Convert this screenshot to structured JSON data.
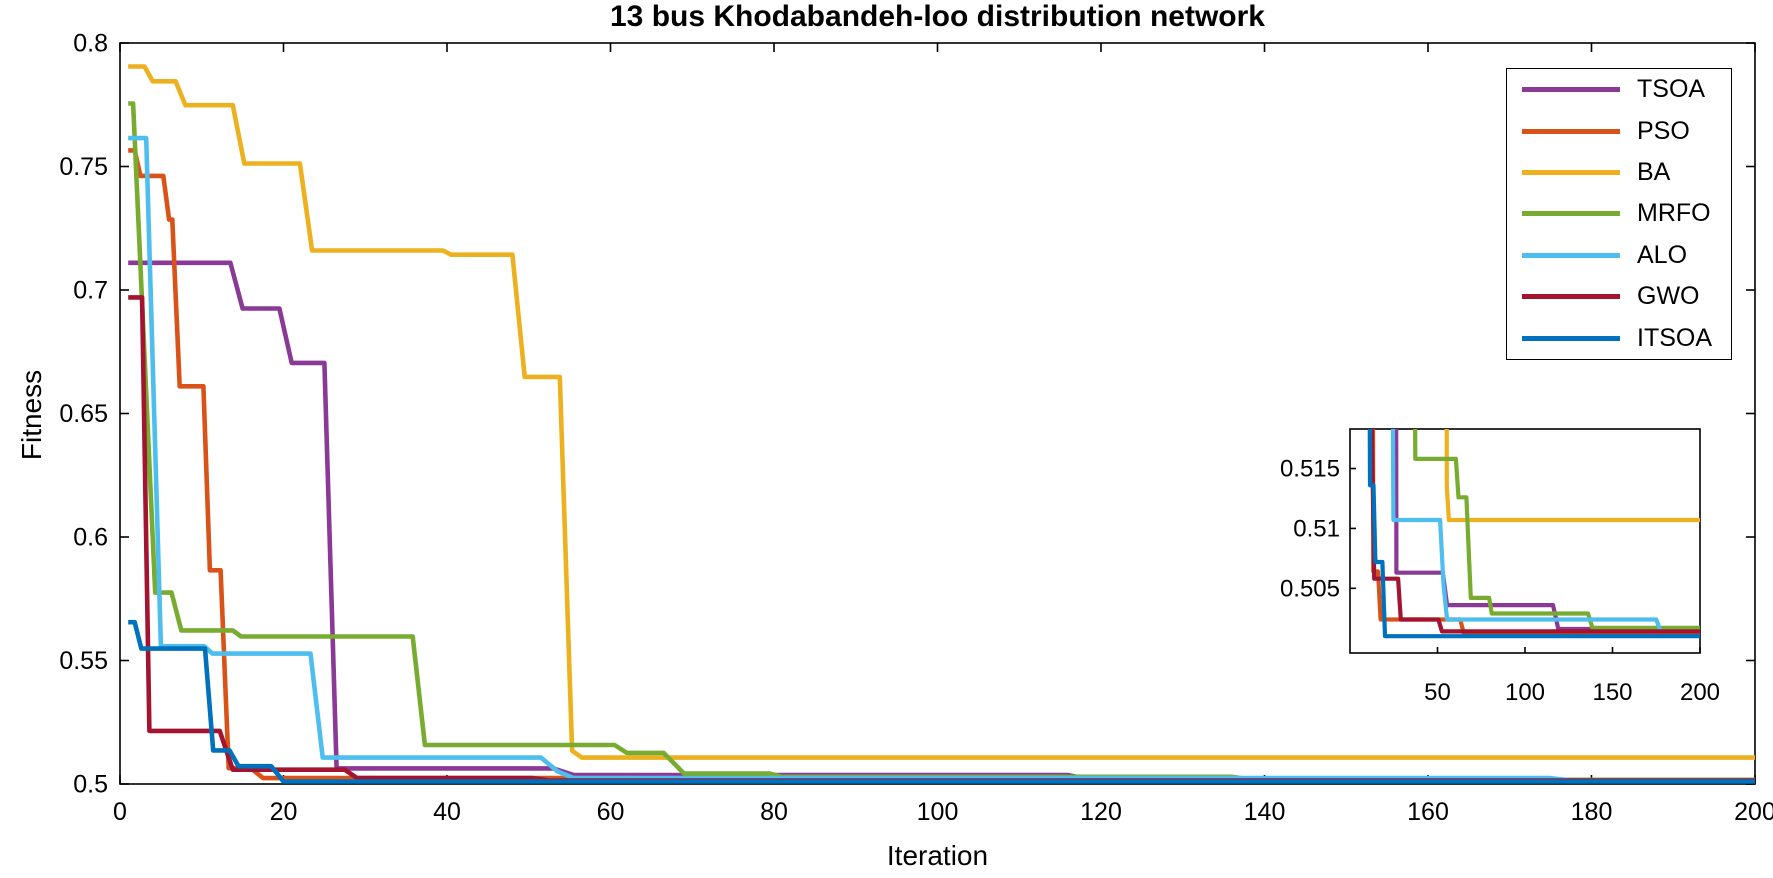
{
  "title": "13 bus Khodabandeh-loo distribution network",
  "chart_data": {
    "type": "line",
    "title": "13 bus Khodabandeh-loo distribution network",
    "xlabel": "Iteration",
    "ylabel": "Fitness",
    "grid": false,
    "legend_position": "top-right",
    "legend_entries": [
      "TSOA",
      "PSO",
      "BA",
      "MRFO",
      "ALO",
      "GWO",
      "ITSOA"
    ],
    "main_axis": {
      "xlim": [
        0,
        200
      ],
      "ylim": [
        0.5,
        0.8
      ],
      "x_ticks": [
        0,
        20,
        40,
        60,
        80,
        100,
        120,
        140,
        160,
        180,
        200
      ],
      "x_tick_labels": [
        "0",
        "20",
        "40",
        "60",
        "80",
        "100",
        "120",
        "140",
        "160",
        "180",
        "200"
      ],
      "y_ticks": [
        0.5,
        0.55,
        0.6,
        0.65,
        0.7,
        0.75,
        0.8
      ],
      "y_tick_labels": [
        "0.5",
        "0.55",
        "0.6",
        "0.65",
        "0.7",
        "0.75",
        "0.8"
      ]
    },
    "inset_axis": {
      "xlim": [
        0,
        200
      ],
      "ylim": [
        0.4996,
        0.5183
      ],
      "x_ticks": [
        50,
        100,
        150,
        200
      ],
      "x_tick_labels": [
        "50",
        "100",
        "150",
        "200"
      ],
      "y_ticks": [
        0.505,
        0.51,
        0.515
      ],
      "y_tick_labels": [
        "0.505",
        "0.51",
        "0.515"
      ]
    },
    "series": [
      {
        "name": "TSOA",
        "color": "#8A3A96",
        "points": [
          [
            1,
            0.711
          ],
          [
            13.5,
            0.711
          ],
          [
            15,
            0.6925
          ],
          [
            19.5,
            0.6925
          ],
          [
            21,
            0.6705
          ],
          [
            25,
            0.6705
          ],
          [
            26.5,
            0.5063
          ],
          [
            53,
            0.5063
          ],
          [
            55.5,
            0.5036
          ],
          [
            116,
            0.5036
          ],
          [
            119,
            0.5016
          ],
          [
            200,
            0.5016
          ]
        ]
      },
      {
        "name": "PSO",
        "color": "#D95319",
        "points": [
          [
            1,
            0.7565
          ],
          [
            1.8,
            0.7565
          ],
          [
            2.5,
            0.7462
          ],
          [
            5.3,
            0.7462
          ],
          [
            6,
            0.7285
          ],
          [
            6.4,
            0.7285
          ],
          [
            7.3,
            0.661
          ],
          [
            10.2,
            0.661
          ],
          [
            11,
            0.5865
          ],
          [
            12.3,
            0.5865
          ],
          [
            13.3,
            0.5064
          ],
          [
            16,
            0.5064
          ],
          [
            17.5,
            0.5024
          ],
          [
            63,
            0.5024
          ],
          [
            65,
            0.5012
          ],
          [
            200,
            0.5012
          ]
        ]
      },
      {
        "name": "BA",
        "color": "#EDB120",
        "points": [
          [
            1,
            0.7905
          ],
          [
            3,
            0.7905
          ],
          [
            4,
            0.7845
          ],
          [
            6.8,
            0.7845
          ],
          [
            8,
            0.7748
          ],
          [
            13.8,
            0.7748
          ],
          [
            15.2,
            0.7512
          ],
          [
            22,
            0.7512
          ],
          [
            23.5,
            0.716
          ],
          [
            39.5,
            0.716
          ],
          [
            40.5,
            0.7143
          ],
          [
            48,
            0.7143
          ],
          [
            49.5,
            0.6648
          ],
          [
            53.8,
            0.6648
          ],
          [
            55.3,
            0.5135
          ],
          [
            56.5,
            0.5107
          ],
          [
            200,
            0.5107
          ]
        ]
      },
      {
        "name": "MRFO",
        "color": "#77AC30",
        "points": [
          [
            1,
            0.7755
          ],
          [
            1.6,
            0.7755
          ],
          [
            4.3,
            0.5775
          ],
          [
            6.3,
            0.5775
          ],
          [
            7.5,
            0.5622
          ],
          [
            13.8,
            0.5622
          ],
          [
            14.8,
            0.5597
          ],
          [
            35.8,
            0.5597
          ],
          [
            37.3,
            0.5158
          ],
          [
            60.5,
            0.5158
          ],
          [
            62,
            0.5126
          ],
          [
            66.5,
            0.5126
          ],
          [
            69,
            0.5042
          ],
          [
            79.5,
            0.5042
          ],
          [
            81,
            0.5029
          ],
          [
            136,
            0.5029
          ],
          [
            138.5,
            0.5017
          ],
          [
            200,
            0.5017
          ]
        ]
      },
      {
        "name": "ALO",
        "color": "#4DBEEE",
        "points": [
          [
            1,
            0.7615
          ],
          [
            3.2,
            0.7615
          ],
          [
            5,
            0.5558
          ],
          [
            10.3,
            0.5558
          ],
          [
            11.3,
            0.5528
          ],
          [
            23.3,
            0.5528
          ],
          [
            24.8,
            0.5107
          ],
          [
            51.5,
            0.5107
          ],
          [
            53.5,
            0.5052
          ],
          [
            55.5,
            0.5024
          ],
          [
            175,
            0.5024
          ],
          [
            177.5,
            0.5014
          ],
          [
            200,
            0.5014
          ]
        ]
      },
      {
        "name": "GWO",
        "color": "#A2142F",
        "points": [
          [
            1,
            0.697
          ],
          [
            2.7,
            0.697
          ],
          [
            3.6,
            0.5215
          ],
          [
            12.2,
            0.5215
          ],
          [
            13.8,
            0.5058
          ],
          [
            27.5,
            0.5058
          ],
          [
            29,
            0.5024
          ],
          [
            50.5,
            0.5024
          ],
          [
            52.5,
            0.5014
          ],
          [
            200,
            0.5014
          ]
        ]
      },
      {
        "name": "ITSOA",
        "color": "#0072BD",
        "points": [
          [
            1,
            0.5655
          ],
          [
            1.8,
            0.5655
          ],
          [
            2.6,
            0.5548
          ],
          [
            10.4,
            0.5548
          ],
          [
            11.4,
            0.5136
          ],
          [
            13.4,
            0.5136
          ],
          [
            14.5,
            0.5072
          ],
          [
            18.5,
            0.5072
          ],
          [
            20,
            0.501
          ],
          [
            200,
            0.501
          ]
        ]
      }
    ]
  }
}
